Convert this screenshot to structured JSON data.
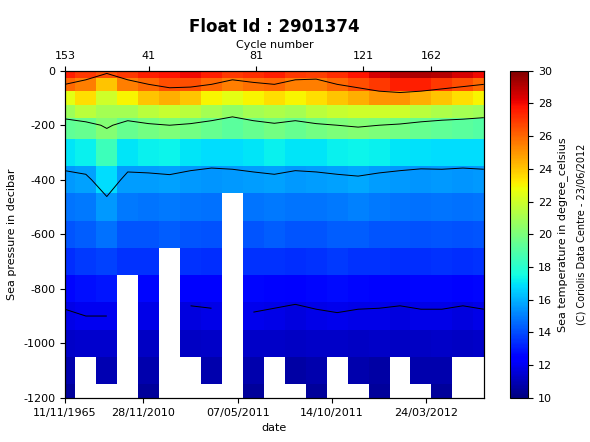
{
  "chart_data": {
    "type": "heatmap",
    "title": "Float Id : 2901374",
    "x_label": "date",
    "y_label": "Sea pressure in decibar",
    "x2_label": "Cycle number",
    "note": "(C) Coriolis Data Centre - 23/06/2012",
    "color": "jet",
    "x": [
      0,
      8,
      16,
      24,
      32,
      40,
      48,
      56,
      64,
      72,
      80,
      88,
      96,
      104,
      112,
      120,
      128,
      136,
      144,
      152,
      160
    ],
    "y": [
      0,
      -50,
      -100,
      -150,
      -200,
      -300,
      -400,
      -500,
      -600,
      -700,
      -800,
      -900,
      -1000,
      -1100,
      -1200
    ],
    "cells": [
      [
        27.5,
        27.0,
        26.5,
        27.0,
        27.5,
        27.8,
        28.0,
        27.5,
        27.0,
        27.2,
        27.5,
        27.0,
        26.8,
        27.2,
        27.8,
        28.5,
        29.0,
        29.2,
        29.0,
        28.5,
        28.0
      ],
      [
        26.0,
        25.5,
        24.0,
        25.5,
        26.0,
        26.5,
        26.5,
        26.0,
        25.5,
        25.8,
        26.0,
        25.5,
        25.5,
        26.0,
        26.5,
        27.0,
        27.5,
        27.5,
        27.0,
        26.5,
        26.0
      ],
      [
        22.5,
        23.5,
        22.0,
        23.0,
        24.0,
        24.5,
        24.0,
        23.0,
        22.5,
        23.0,
        23.5,
        23.0,
        23.5,
        24.0,
        24.5,
        25.0,
        25.0,
        24.5,
        24.0,
        23.5,
        23.0
      ],
      [
        20.8,
        21.5,
        21.0,
        21.0,
        21.5,
        21.8,
        21.5,
        21.0,
        20.5,
        21.0,
        21.2,
        21.0,
        21.5,
        21.8,
        22.0,
        22.0,
        22.0,
        21.5,
        21.2,
        21.0,
        20.8
      ],
      [
        19.3,
        19.5,
        20.2,
        19.5,
        19.8,
        20.0,
        19.8,
        19.5,
        19.2,
        19.5,
        19.8,
        19.5,
        19.8,
        20.0,
        20.2,
        20.0,
        19.8,
        19.5,
        19.3,
        19.2,
        19.0
      ],
      [
        17.0,
        17.2,
        18.5,
        17.0,
        17.2,
        17.3,
        17.0,
        16.8,
        16.8,
        17.0,
        17.2,
        17.0,
        17.0,
        17.2,
        17.3,
        17.2,
        17.0,
        16.9,
        16.8,
        16.8,
        16.8
      ],
      [
        15.5,
        15.7,
        16.8,
        15.6,
        15.6,
        15.7,
        15.5,
        15.4,
        15.5,
        15.6,
        15.7,
        15.5,
        15.6,
        15.7,
        15.8,
        15.6,
        15.5,
        15.4,
        15.5,
        15.4,
        15.5
      ],
      [
        14.8,
        14.9,
        15.5,
        14.9,
        14.8,
        14.9,
        14.8,
        14.7,
        null,
        14.8,
        14.9,
        14.8,
        14.8,
        14.9,
        15.0,
        14.9,
        14.8,
        14.7,
        14.8,
        14.7,
        14.8
      ],
      [
        14.2,
        14.3,
        14.7,
        14.2,
        14.2,
        14.3,
        14.2,
        14.1,
        null,
        14.2,
        14.3,
        14.2,
        14.2,
        14.3,
        14.3,
        14.2,
        14.2,
        14.1,
        14.2,
        14.1,
        14.2
      ],
      [
        13.4,
        13.6,
        13.8,
        13.5,
        13.5,
        null,
        13.5,
        13.4,
        null,
        13.5,
        13.5,
        13.4,
        13.5,
        13.6,
        13.5,
        13.5,
        13.4,
        13.4,
        13.5,
        13.4,
        13.5
      ],
      [
        12.6,
        12.8,
        12.9,
        null,
        12.6,
        null,
        12.5,
        12.5,
        null,
        12.6,
        12.5,
        12.4,
        12.6,
        12.7,
        12.6,
        12.5,
        12.5,
        12.6,
        12.6,
        12.5,
        12.6
      ],
      [
        11.8,
        12.0,
        12.0,
        null,
        11.8,
        null,
        11.7,
        11.8,
        null,
        11.9,
        11.8,
        11.7,
        11.8,
        11.9,
        11.8,
        11.8,
        11.7,
        11.8,
        11.8,
        11.7,
        11.8
      ],
      [
        11.3,
        11.4,
        11.4,
        null,
        11.2,
        null,
        11.2,
        11.3,
        null,
        11.3,
        11.3,
        11.2,
        11.3,
        11.3,
        11.2,
        11.3,
        11.2,
        11.2,
        11.3,
        11.2,
        11.3
      ],
      [
        10.8,
        null,
        10.9,
        null,
        10.8,
        null,
        null,
        10.8,
        null,
        10.8,
        null,
        10.7,
        10.8,
        null,
        10.8,
        10.7,
        null,
        10.8,
        10.8,
        null,
        null
      ],
      [
        10.5,
        null,
        null,
        null,
        10.5,
        null,
        null,
        null,
        null,
        10.5,
        null,
        null,
        10.5,
        null,
        null,
        10.5,
        null,
        null,
        10.5,
        null,
        null
      ]
    ],
    "contour_levels": [
      12,
      16,
      20,
      26
    ],
    "xlim": [
      0,
      160
    ],
    "xticks": [
      {
        "value": 0,
        "label": "11/11/1965"
      },
      {
        "value": 30,
        "label": "28/11/2010"
      },
      {
        "value": 66,
        "label": "07/05/2011"
      },
      {
        "value": 102,
        "label": "14/10/2011"
      },
      {
        "value": 138,
        "label": "24/03/2012"
      }
    ],
    "x2ticks": [
      {
        "value": 0,
        "label": "153"
      },
      {
        "value": 32,
        "label": "41"
      },
      {
        "value": 73,
        "label": "81"
      },
      {
        "value": 114,
        "label": "121"
      },
      {
        "value": 140,
        "label": "162"
      }
    ],
    "ylim": [
      -1200,
      0
    ],
    "yticks": [
      -1200,
      -1000,
      -800,
      -600,
      -400,
      -200,
      0
    ],
    "colorbar": {
      "label": "Sea temperature in degree_celsius",
      "range": [
        10,
        30
      ],
      "ticks": [
        10,
        12,
        14,
        16,
        18,
        20,
        22,
        24,
        26,
        28,
        30
      ]
    }
  }
}
